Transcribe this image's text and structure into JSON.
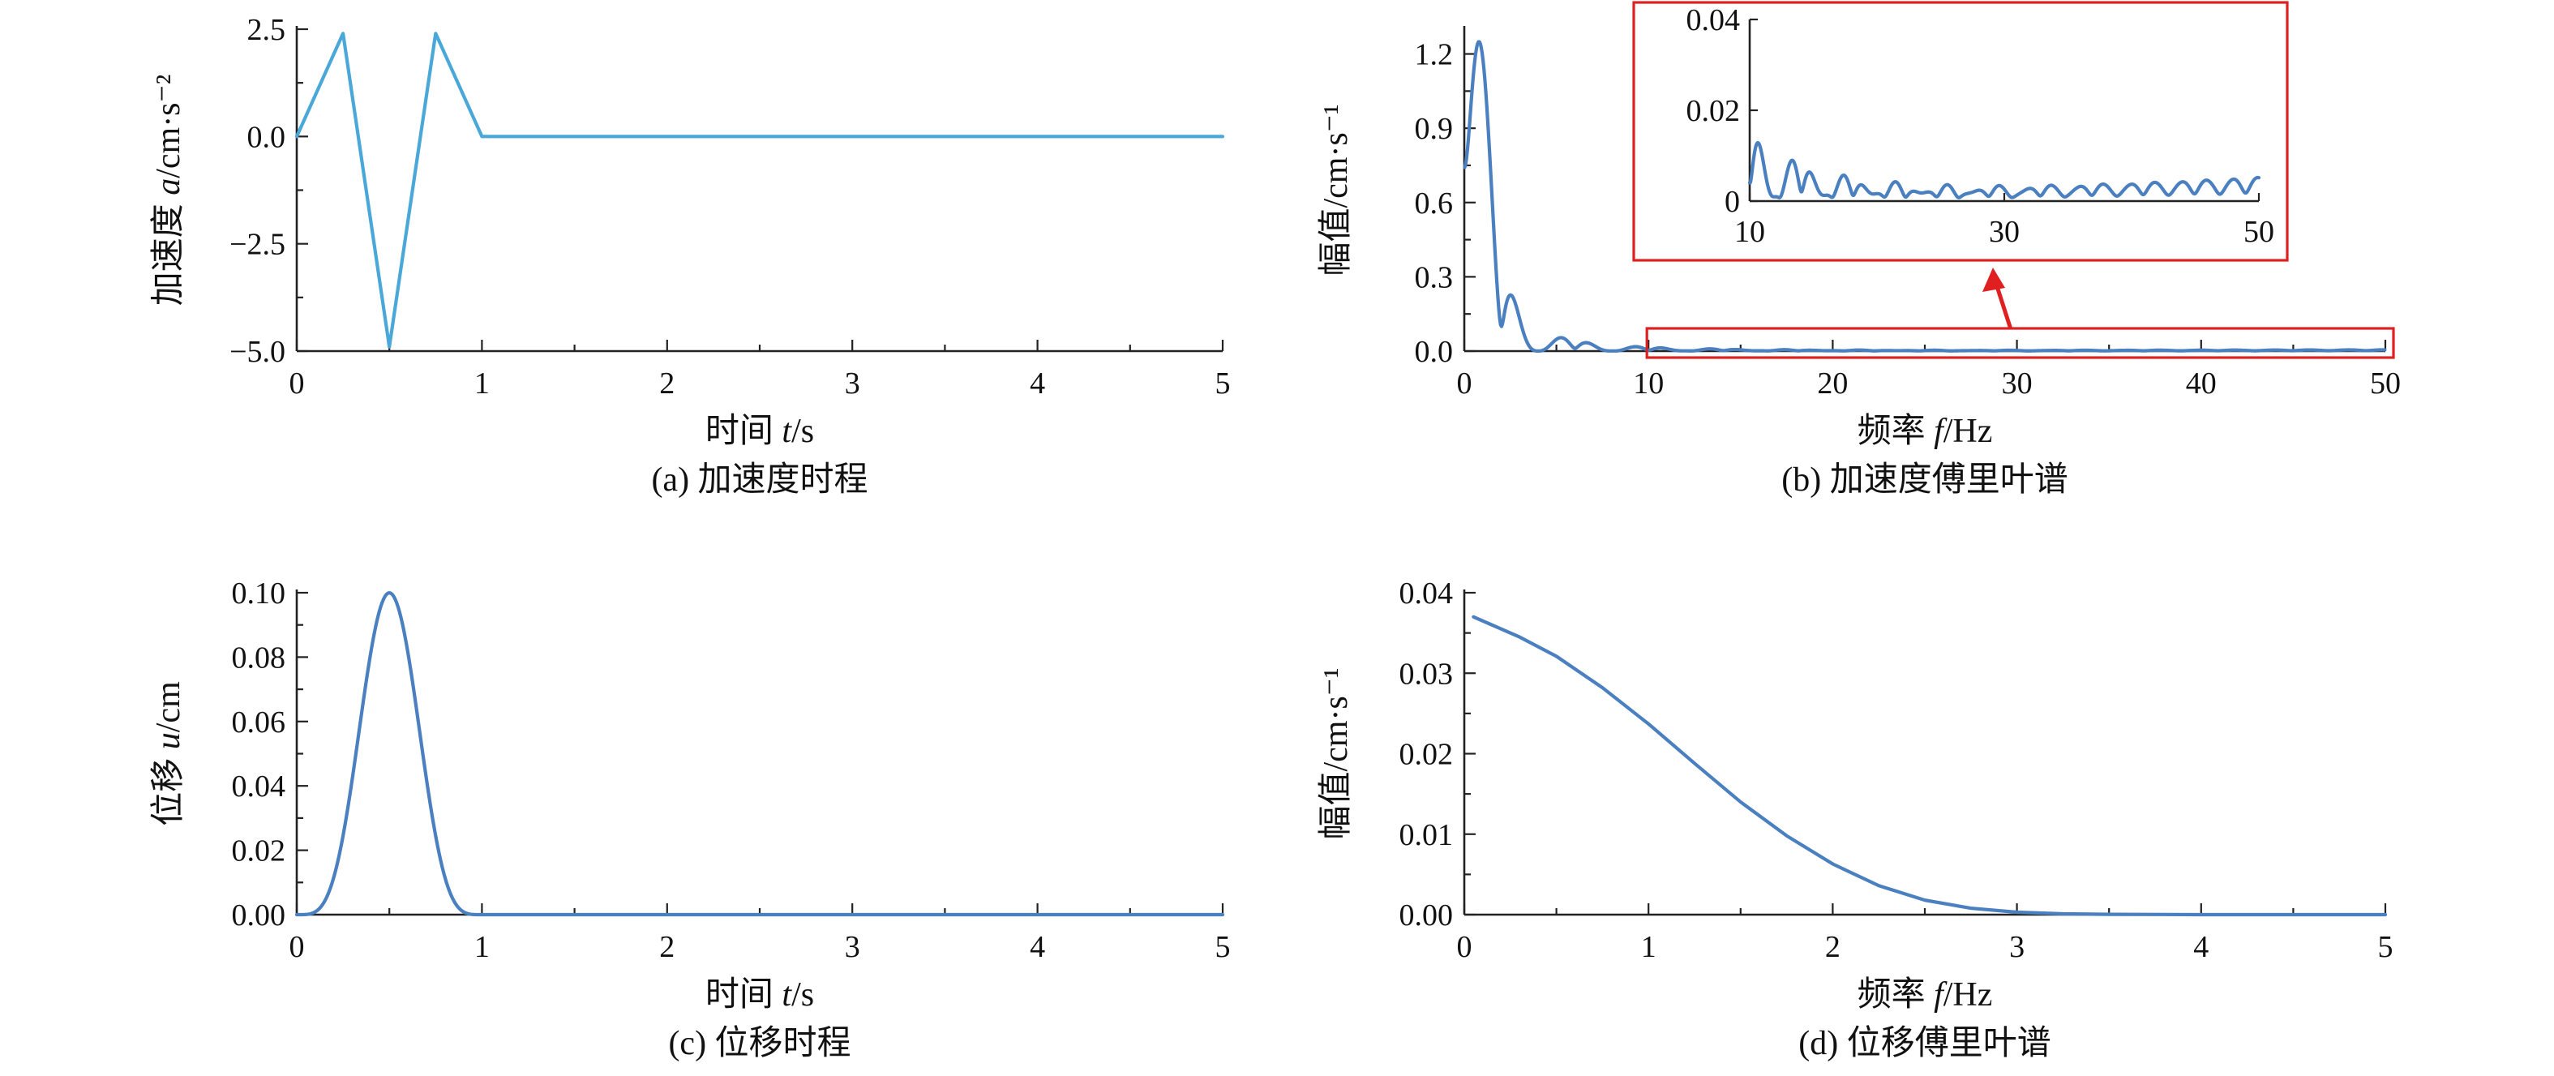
{
  "chart_data": [
    {
      "id": "a",
      "type": "line",
      "caption": "(a) 加速度时程",
      "xlabel": [
        "时间 ",
        "t",
        "/s"
      ],
      "ylabel": [
        "加速度 ",
        "a",
        "/cm·s⁻²"
      ],
      "xlim": [
        0,
        5
      ],
      "ylim": [
        -5,
        2.5
      ],
      "xticks": [
        0,
        1,
        2,
        3,
        4,
        5
      ],
      "xticklabels": [
        "0",
        "1",
        "2",
        "3",
        "4",
        "5"
      ],
      "yticks": [
        -5,
        -2.5,
        0,
        2.5
      ],
      "yticklabels": [
        "−5.0",
        "−2.5",
        "0.0",
        "2.5"
      ],
      "color": "#4aa8d8",
      "x": [
        0,
        0.25,
        0.5,
        0.75,
        1,
        5
      ],
      "y": [
        0,
        2.4,
        -4.9,
        2.4,
        0,
        0
      ]
    },
    {
      "id": "b",
      "type": "line",
      "caption": "(b) 加速度傅里叶谱",
      "xlabel": [
        "频率 ",
        "f",
        "/Hz"
      ],
      "ylabel": [
        "幅值/cm·s⁻¹"
      ],
      "xlim": [
        0,
        50
      ],
      "ylim": [
        0,
        1.3
      ],
      "xticks": [
        0,
        10,
        20,
        30,
        40,
        50
      ],
      "xticklabels": [
        "0",
        "10",
        "20",
        "30",
        "40",
        "50"
      ],
      "yticks": [
        0,
        0.3,
        0.6,
        0.9,
        1.2
      ],
      "yticklabels": [
        "0.0",
        "0.3",
        "0.6",
        "0.9",
        "1.2"
      ],
      "color": "#4a7fc0",
      "shape": "spectrum",
      "inset": {
        "xlim": [
          10,
          50
        ],
        "ylim": [
          0,
          0.04
        ],
        "xticks": [
          10,
          30,
          50
        ],
        "xticklabels": [
          "10",
          "30",
          "50"
        ],
        "yticks": [
          0,
          0.02,
          0.04
        ],
        "yticklabels": [
          "0",
          "0.02",
          "0.04"
        ],
        "zoom_region_x": [
          10,
          50
        ],
        "zoom_region_y": [
          0,
          0.04
        ],
        "highlight_color": "#e02020"
      }
    },
    {
      "id": "c",
      "type": "line",
      "caption": "(c) 位移时程",
      "xlabel": [
        "时间 ",
        "t",
        "/s"
      ],
      "ylabel": [
        "位移 ",
        "u",
        "/cm"
      ],
      "xlim": [
        0,
        5
      ],
      "ylim": [
        0,
        0.1
      ],
      "xticks": [
        0,
        1,
        2,
        3,
        4,
        5
      ],
      "xticklabels": [
        "0",
        "1",
        "2",
        "3",
        "4",
        "5"
      ],
      "yticks": [
        0,
        0.02,
        0.04,
        0.06,
        0.08,
        0.1
      ],
      "yticklabels": [
        "0.00",
        "0.02",
        "0.04",
        "0.06",
        "0.08",
        "0.10"
      ],
      "color": "#4a7fc0",
      "shape": "pulse",
      "peak_x": 0.5,
      "peak_y": 0.098
    },
    {
      "id": "d",
      "type": "line",
      "caption": "(d) 位移傅里叶谱",
      "xlabel": [
        "频率 ",
        "f",
        "/Hz"
      ],
      "ylabel": [
        "幅值/cm·s⁻¹"
      ],
      "xlim": [
        0,
        5
      ],
      "ylim": [
        0,
        0.04
      ],
      "xticks": [
        0,
        1,
        2,
        3,
        4,
        5
      ],
      "xticklabels": [
        "0",
        "1",
        "2",
        "3",
        "4",
        "5"
      ],
      "yticks": [
        0,
        0.01,
        0.02,
        0.03,
        0.04
      ],
      "yticklabels": [
        "0.00",
        "0.01",
        "0.02",
        "0.03",
        "0.04"
      ],
      "color": "#4a7fc0",
      "x": [
        0.05,
        0.3,
        0.5,
        0.75,
        1.0,
        1.25,
        1.5,
        1.75,
        2.0,
        2.25,
        2.5,
        2.75,
        3.0,
        3.25,
        3.5,
        4.0,
        4.5,
        5.0
      ],
      "y": [
        0.037,
        0.0345,
        0.0321,
        0.0282,
        0.0237,
        0.0188,
        0.014,
        0.0098,
        0.0063,
        0.0036,
        0.0018,
        0.0008,
        0.0003,
        0.0001,
        4e-05,
        0.0,
        0.0,
        0.0
      ]
    }
  ]
}
